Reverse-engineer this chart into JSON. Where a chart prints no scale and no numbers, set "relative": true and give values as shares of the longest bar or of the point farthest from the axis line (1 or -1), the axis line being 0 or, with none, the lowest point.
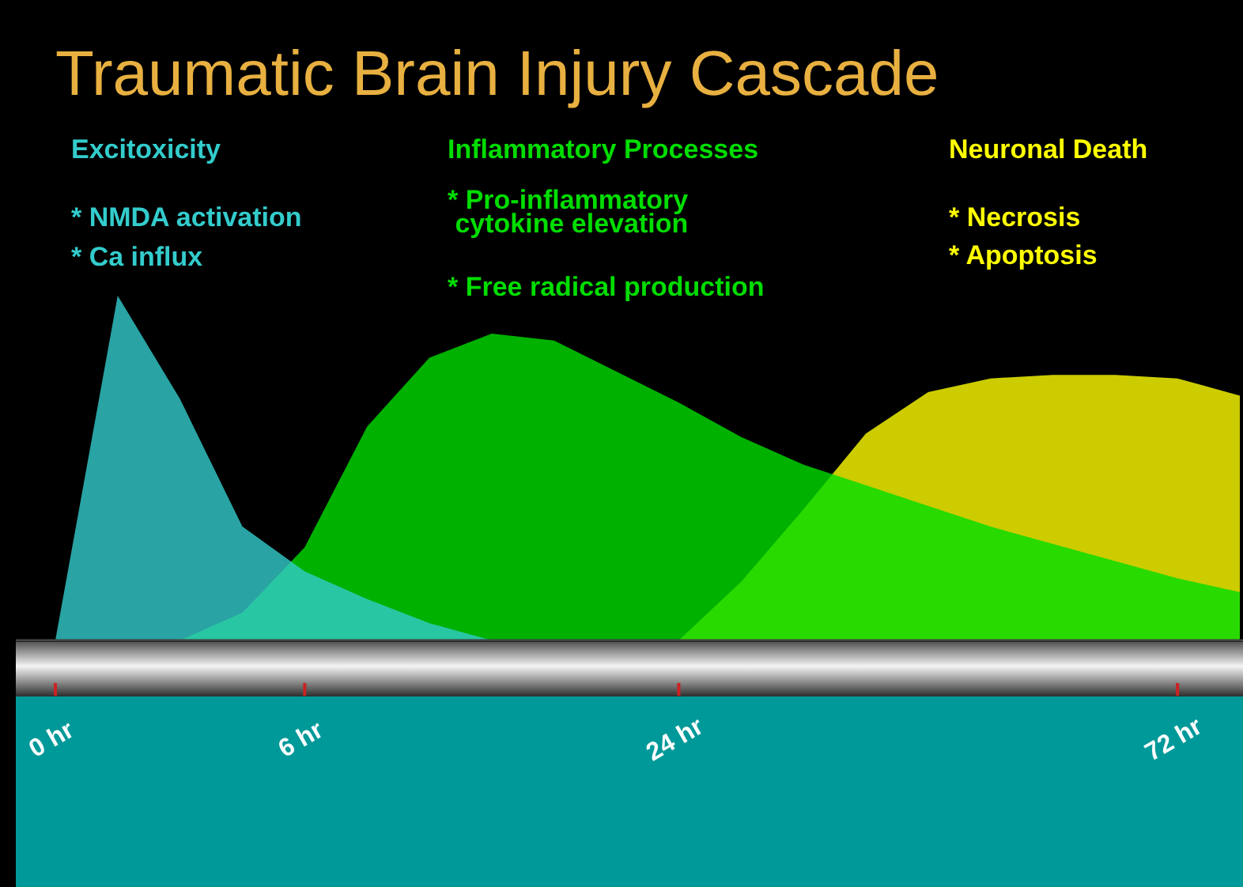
{
  "chart_data": {
    "type": "area",
    "title": "Traumatic Brain Injury Cascade",
    "relative": true,
    "grid": false,
    "legend": false,
    "categories": [
      "0 hr",
      null,
      null,
      null,
      "6 hr",
      null,
      null,
      null,
      null,
      null,
      "24 hr",
      null,
      null,
      null,
      null,
      null,
      null,
      null,
      "72 hr",
      null
    ],
    "series": [
      {
        "name": "Excitoxicity",
        "color": "#33cccc",
        "values": [
          0,
          1,
          0.7,
          0.33,
          0.2,
          0.12,
          0.05,
          0,
          null,
          null,
          null,
          null,
          null,
          null,
          null,
          null,
          null,
          null,
          null,
          null
        ]
      },
      {
        "name": "Inflammatory Processes",
        "color": "#00dd00",
        "values": [
          null,
          null,
          0,
          0.08,
          0.27,
          0.62,
          0.82,
          0.89,
          0.87,
          0.78,
          0.69,
          0.59,
          0.51,
          0.45,
          0.39,
          0.33,
          0.28,
          0.23,
          0.18,
          0.14
        ]
      },
      {
        "name": "Neuronal Death",
        "color": "#ffff00",
        "values": [
          null,
          null,
          null,
          null,
          null,
          null,
          null,
          null,
          null,
          null,
          0,
          0.17,
          0.38,
          0.6,
          0.72,
          0.76,
          0.77,
          0.77,
          0.76,
          0.71
        ]
      }
    ],
    "annotations": [
      "* NMDA activation",
      "* Ca influx",
      "* Pro-inflammatory cytokine elevation",
      "* Free radical production",
      "* Necrosis",
      "* Apoptosis"
    ]
  }
}
